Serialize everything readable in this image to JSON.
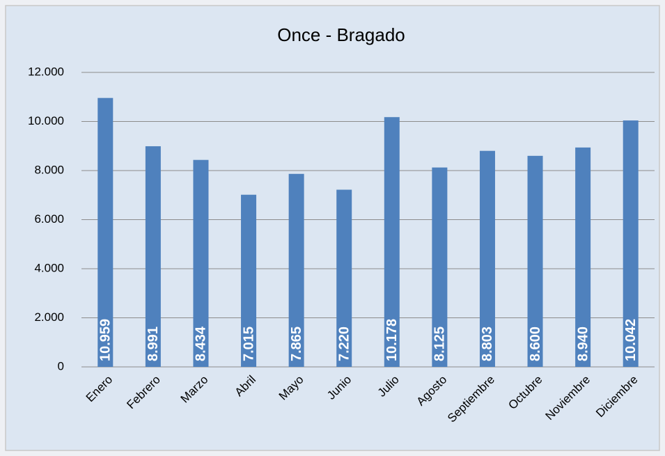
{
  "chart_data": {
    "type": "bar",
    "title": "Once - Bragado",
    "categories": [
      "Enero",
      "Febrero",
      "Marzo",
      "Abril",
      "Mayo",
      "Junio",
      "Julio",
      "Agosto",
      "Septiembre",
      "Octubre",
      "Noviembre",
      "Diciembre"
    ],
    "values": [
      10959,
      8991,
      8434,
      7015,
      7865,
      7220,
      10178,
      8125,
      8803,
      8600,
      8940,
      10042
    ],
    "value_labels": [
      "10.959",
      "8.991",
      "8.434",
      "7.015",
      "7.865",
      "7.220",
      "10.178",
      "8.125",
      "8.803",
      "8.600",
      "8.940",
      "10.042"
    ],
    "color": "#4f81bd",
    "ylim": [
      0,
      12000
    ],
    "yticks": [
      0,
      {
        "value": 2000,
        "label": "2.000"
      },
      {
        "value": 4000,
        "label": "4.000"
      },
      {
        "value": 6000,
        "label": "6.000"
      },
      {
        "value": 8000,
        "label": "8.000"
      },
      {
        "value": 10000,
        "label": "10.000"
      },
      {
        "value": 12000,
        "label": "12.000"
      }
    ],
    "grid": true
  }
}
